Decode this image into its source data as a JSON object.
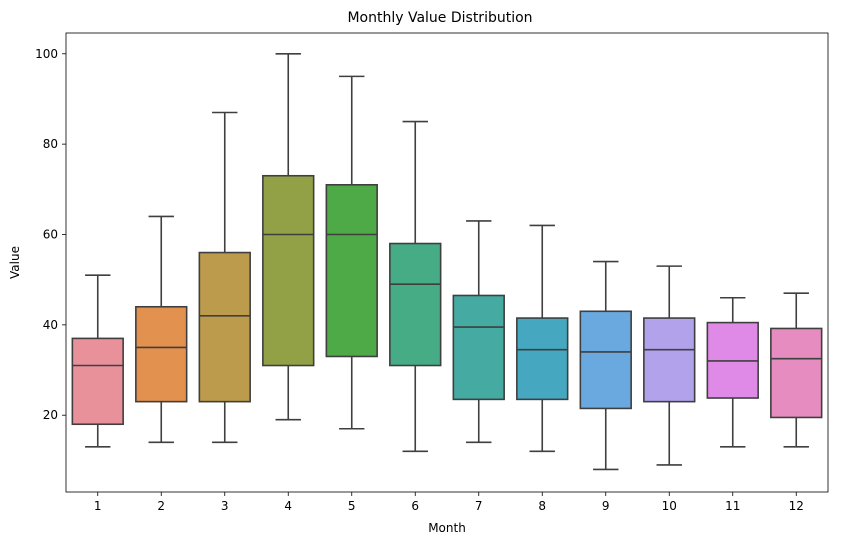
{
  "chart_data": {
    "type": "box",
    "title": "Monthly Value Distribution",
    "xlabel": "Month",
    "ylabel": "Value",
    "ylim": [
      3,
      104.6
    ],
    "yticks": [
      20,
      40,
      60,
      80,
      100
    ],
    "grid": false,
    "categories": [
      "1",
      "2",
      "3",
      "4",
      "5",
      "6",
      "7",
      "8",
      "9",
      "10",
      "11",
      "12"
    ],
    "colors": [
      "#e8919b",
      "#e3914f",
      "#bc9b4d",
      "#93a146",
      "#4daa47",
      "#45ac86",
      "#45aba2",
      "#45a8c0",
      "#6aa8e0",
      "#b2a2ec",
      "#e08ae8",
      "#e68cc0"
    ],
    "boxes": [
      {
        "whislo": 13,
        "q1": 18,
        "med": 31,
        "q3": 37,
        "whishi": 51
      },
      {
        "whislo": 14,
        "q1": 23,
        "med": 35,
        "q3": 44,
        "whishi": 64
      },
      {
        "whislo": 14,
        "q1": 23,
        "med": 42,
        "q3": 56,
        "whishi": 87
      },
      {
        "whislo": 19,
        "q1": 31,
        "med": 60,
        "q3": 73,
        "whishi": 100
      },
      {
        "whislo": 17,
        "q1": 33,
        "med": 60,
        "q3": 71,
        "whishi": 95
      },
      {
        "whislo": 12,
        "q1": 31,
        "med": 49,
        "q3": 58,
        "whishi": 85
      },
      {
        "whislo": 14,
        "q1": 23.5,
        "med": 39.5,
        "q3": 46.5,
        "whishi": 63
      },
      {
        "whislo": 12,
        "q1": 23.5,
        "med": 34.5,
        "q3": 41.5,
        "whishi": 62
      },
      {
        "whislo": 8,
        "q1": 21.5,
        "med": 34,
        "q3": 43,
        "whishi": 54
      },
      {
        "whislo": 9,
        "q1": 23,
        "med": 34.5,
        "q3": 41.5,
        "whishi": 53
      },
      {
        "whislo": 13,
        "q1": 23.8,
        "med": 32,
        "q3": 40.5,
        "whishi": 46
      },
      {
        "whislo": 13,
        "q1": 19.5,
        "med": 32.5,
        "q3": 39.2,
        "whishi": 47
      }
    ]
  }
}
